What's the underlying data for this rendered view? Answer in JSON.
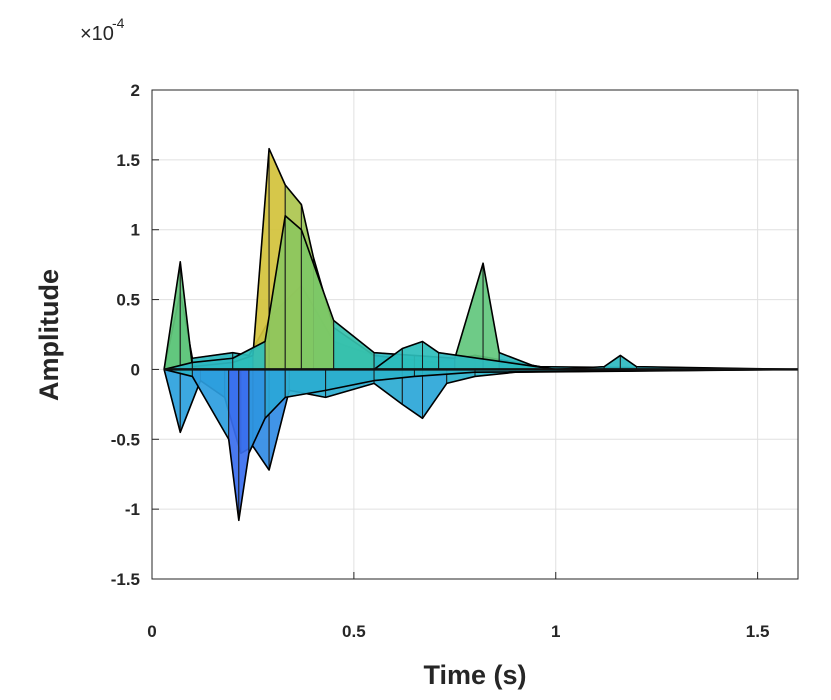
{
  "chart_data": {
    "type": "area",
    "xlabel": "Time (s)",
    "ylabel": "Amplitude",
    "y_multiplier": {
      "base": "×10",
      "exponent": "-4"
    },
    "xlim": [
      0,
      1.6
    ],
    "ylim": [
      -1.5,
      2
    ],
    "x_ticks": [
      0,
      0.5,
      1,
      1.5
    ],
    "x_tick_labels": [
      "0",
      "0.5",
      "1",
      "1.5"
    ],
    "y_ticks": [
      2,
      1.5,
      1,
      0.5,
      0,
      -0.5,
      -1,
      -1.5
    ],
    "y_tick_labels": [
      "2",
      "1.5",
      "1",
      "0.5",
      "0",
      "-0.5",
      "-1",
      "-1.5"
    ],
    "grid": true,
    "colormap": [
      "#3a6cf0",
      "#2aa3dc",
      "#2cc0b8",
      "#73c96a",
      "#d6c23a"
    ],
    "series": [
      {
        "x": [
          0.03,
          0.07,
          0.1,
          0.2,
          0.24,
          0.3,
          0.37,
          0.45,
          0.55,
          0.7,
          0.8,
          1.0,
          1.6
        ],
        "values": [
          0,
          0.55,
          0.08,
          0.12,
          0.1,
          0.4,
          0.6,
          0.2,
          0.1,
          0.05,
          0.1,
          0,
          0
        ]
      },
      {
        "x": [
          0.03,
          0.07,
          0.1,
          0.2,
          0.25,
          0.29,
          0.33,
          0.37,
          0.4,
          0.45,
          0.55,
          0.7,
          0.8,
          1.0,
          1.6
        ],
        "values": [
          0,
          0.77,
          0.02,
          0.05,
          0.1,
          1.58,
          1.32,
          1.18,
          0.8,
          0.3,
          0.1,
          0.05,
          0.1,
          0,
          0
        ]
      },
      {
        "x": [
          0.03,
          0.1,
          0.2,
          0.28,
          0.33,
          0.37,
          0.45,
          0.55,
          0.65,
          0.75,
          0.82,
          0.86,
          0.95,
          1.6
        ],
        "values": [
          0,
          0.05,
          0.08,
          0.2,
          1.1,
          1.0,
          0.35,
          0.12,
          0.1,
          0.08,
          0.76,
          0.12,
          0.02,
          0
        ]
      },
      {
        "x": [
          0.03,
          0.07,
          0.12,
          0.18,
          0.22,
          0.25,
          0.29,
          0.34,
          0.43,
          0.55,
          0.62,
          0.67,
          0.73,
          0.8,
          0.9,
          1.6
        ],
        "values": [
          0,
          -0.45,
          -0.08,
          -0.2,
          -0.6,
          -0.55,
          -0.72,
          -0.15,
          -0.2,
          -0.1,
          -0.25,
          -0.35,
          -0.1,
          -0.05,
          -0.02,
          0
        ]
      },
      {
        "x": [
          0.03,
          0.1,
          0.19,
          0.215,
          0.24,
          0.28,
          0.33,
          0.43,
          0.55,
          0.65,
          0.8,
          1.6
        ],
        "values": [
          0,
          -0.05,
          -0.5,
          -1.08,
          -0.6,
          -0.35,
          -0.2,
          -0.15,
          -0.08,
          -0.05,
          -0.02,
          0
        ]
      },
      {
        "x": [
          0.03,
          0.55,
          0.62,
          0.67,
          0.71,
          1.0,
          1.12,
          1.16,
          1.2,
          1.6
        ],
        "values": [
          0,
          0,
          0.15,
          0.2,
          0.12,
          0,
          0.02,
          0.1,
          0.02,
          0
        ]
      }
    ]
  }
}
